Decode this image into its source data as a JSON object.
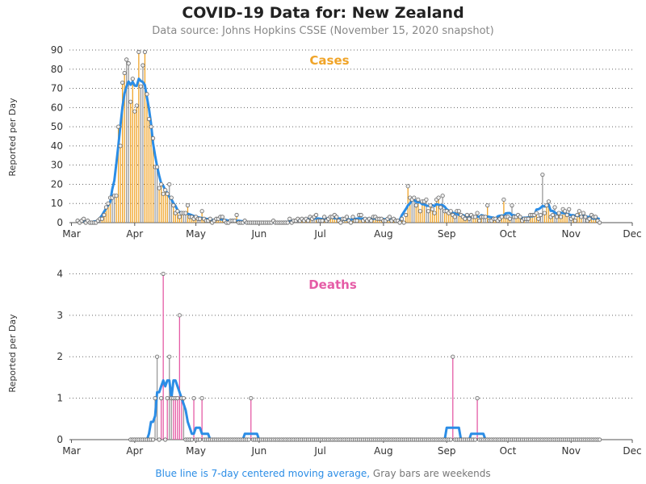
{
  "title": "COVID-19 Data for: New Zealand",
  "subtitle": "Data source: Johns Hopkins CSSE (November 15, 2020 snapshot)",
  "footer": {
    "blue_part": "Blue line is 7-day centered moving average,",
    "gray_part": " Gray bars are weekends"
  },
  "colors": {
    "cases": "#f0a428",
    "deaths": "#e55ca6",
    "average": "#2b8de6",
    "weekend": "#9a9a9a",
    "point_fill": "#eeeeee",
    "grid": "#666666"
  },
  "chart_data": [
    {
      "type": "bar",
      "title": "Cases",
      "ylabel": "Reported per Day",
      "ylim": [
        0,
        90
      ],
      "yticks": [
        0,
        10,
        20,
        30,
        40,
        50,
        60,
        70,
        80,
        90
      ],
      "xticks": [
        "Mar",
        "Apr",
        "May",
        "Jun",
        "Jul",
        "Aug",
        "Sep",
        "Oct",
        "Nov",
        "Dec"
      ],
      "x_start": "2020-02-29",
      "x_end": "2020-12-01",
      "grid": "horizontal dotted",
      "series": [
        {
          "values_by_date": [
            [
              "2020-03-04",
              1
            ],
            [
              "2020-03-06",
              1
            ],
            [
              "2020-03-07",
              2
            ],
            [
              "2020-03-09",
              1
            ],
            [
              "2020-03-14",
              1
            ],
            [
              "2020-03-15",
              2
            ],
            [
              "2020-03-16",
              2
            ],
            [
              "2020-03-17",
              4
            ],
            [
              "2020-03-18",
              8
            ],
            [
              "2020-03-19",
              10
            ],
            [
              "2020-03-20",
              13
            ],
            [
              "2020-03-21",
              13
            ],
            [
              "2020-03-22",
              14
            ],
            [
              "2020-03-23",
              14
            ],
            [
              "2020-03-24",
              50
            ],
            [
              "2020-03-25",
              40
            ],
            [
              "2020-03-26",
              73
            ],
            [
              "2020-03-27",
              78
            ],
            [
              "2020-03-28",
              85
            ],
            [
              "2020-03-29",
              83
            ],
            [
              "2020-03-30",
              63
            ],
            [
              "2020-03-31",
              75
            ],
            [
              "2020-04-01",
              58
            ],
            [
              "2020-04-02",
              61
            ],
            [
              "2020-04-03",
              89
            ],
            [
              "2020-04-04",
              71
            ],
            [
              "2020-04-05",
              82
            ],
            [
              "2020-04-06",
              89
            ],
            [
              "2020-04-07",
              67
            ],
            [
              "2020-04-08",
              54
            ],
            [
              "2020-04-09",
              50
            ],
            [
              "2020-04-10",
              44
            ],
            [
              "2020-04-11",
              29
            ],
            [
              "2020-04-12",
              29
            ],
            [
              "2020-04-13",
              18
            ],
            [
              "2020-04-14",
              20
            ],
            [
              "2020-04-15",
              15
            ],
            [
              "2020-04-16",
              17
            ],
            [
              "2020-04-17",
              15
            ],
            [
              "2020-04-18",
              20
            ],
            [
              "2020-04-19",
              13
            ],
            [
              "2020-04-20",
              9
            ],
            [
              "2020-04-21",
              5
            ],
            [
              "2020-04-22",
              6
            ],
            [
              "2020-04-23",
              3
            ],
            [
              "2020-04-24",
              5
            ],
            [
              "2020-04-25",
              5
            ],
            [
              "2020-04-26",
              5
            ],
            [
              "2020-04-27",
              9
            ],
            [
              "2020-04-28",
              3
            ],
            [
              "2020-04-29",
              3
            ],
            [
              "2020-04-30",
              2
            ],
            [
              "2020-05-01",
              3
            ],
            [
              "2020-05-02",
              2
            ],
            [
              "2020-05-03",
              2
            ],
            [
              "2020-05-04",
              6
            ],
            [
              "2020-05-05",
              2
            ],
            [
              "2020-05-06",
              1
            ],
            [
              "2020-05-07",
              1
            ],
            [
              "2020-05-08",
              2
            ],
            [
              "2020-05-10",
              1
            ],
            [
              "2020-05-11",
              2
            ],
            [
              "2020-05-12",
              2
            ],
            [
              "2020-05-13",
              3
            ],
            [
              "2020-05-14",
              3
            ],
            [
              "2020-05-15",
              1
            ],
            [
              "2020-05-18",
              1
            ],
            [
              "2020-05-19",
              1
            ],
            [
              "2020-05-20",
              1
            ],
            [
              "2020-05-21",
              4
            ],
            [
              "2020-05-25",
              1
            ],
            [
              "2020-06-08",
              1
            ],
            [
              "2020-06-16",
              2
            ],
            [
              "2020-06-18",
              1
            ],
            [
              "2020-06-19",
              1
            ],
            [
              "2020-06-20",
              2
            ],
            [
              "2020-06-21",
              1
            ],
            [
              "2020-06-22",
              2
            ],
            [
              "2020-06-23",
              1
            ],
            [
              "2020-06-24",
              2
            ],
            [
              "2020-06-25",
              1
            ],
            [
              "2020-06-26",
              3
            ],
            [
              "2020-06-27",
              2
            ],
            [
              "2020-06-28",
              3
            ],
            [
              "2020-06-29",
              4
            ],
            [
              "2020-06-30",
              1
            ],
            [
              "2020-07-01",
              1
            ],
            [
              "2020-07-02",
              1
            ],
            [
              "2020-07-03",
              3
            ],
            [
              "2020-07-04",
              1
            ],
            [
              "2020-07-05",
              2
            ],
            [
              "2020-07-06",
              3
            ],
            [
              "2020-07-07",
              3
            ],
            [
              "2020-07-08",
              4
            ],
            [
              "2020-07-09",
              3
            ],
            [
              "2020-07-10",
              1
            ],
            [
              "2020-07-12",
              2
            ],
            [
              "2020-07-13",
              2
            ],
            [
              "2020-07-14",
              3
            ],
            [
              "2020-07-15",
              1
            ],
            [
              "2020-07-17",
              3
            ],
            [
              "2020-07-18",
              1
            ],
            [
              "2020-07-19",
              1
            ],
            [
              "2020-07-20",
              4
            ],
            [
              "2020-07-21",
              4
            ],
            [
              "2020-07-22",
              1
            ],
            [
              "2020-07-23",
              2
            ],
            [
              "2020-07-24",
              1
            ],
            [
              "2020-07-25",
              2
            ],
            [
              "2020-07-26",
              1
            ],
            [
              "2020-07-27",
              3
            ],
            [
              "2020-07-28",
              3
            ],
            [
              "2020-07-29",
              2
            ],
            [
              "2020-07-30",
              2
            ],
            [
              "2020-07-31",
              2
            ],
            [
              "2020-08-01",
              1
            ],
            [
              "2020-08-02",
              1
            ],
            [
              "2020-08-03",
              2
            ],
            [
              "2020-08-04",
              3
            ],
            [
              "2020-08-05",
              1
            ],
            [
              "2020-08-06",
              2
            ],
            [
              "2020-08-07",
              1
            ],
            [
              "2020-08-08",
              1
            ],
            [
              "2020-08-10",
              2
            ],
            [
              "2020-08-12",
              4
            ],
            [
              "2020-08-13",
              19
            ],
            [
              "2020-08-14",
              13
            ],
            [
              "2020-08-15",
              12
            ],
            [
              "2020-08-16",
              13
            ],
            [
              "2020-08-17",
              9
            ],
            [
              "2020-08-18",
              12
            ],
            [
              "2020-08-19",
              6
            ],
            [
              "2020-08-20",
              11
            ],
            [
              "2020-08-21",
              11
            ],
            [
              "2020-08-22",
              12
            ],
            [
              "2020-08-23",
              6
            ],
            [
              "2020-08-24",
              9
            ],
            [
              "2020-08-25",
              7
            ],
            [
              "2020-08-26",
              5
            ],
            [
              "2020-08-27",
              12
            ],
            [
              "2020-08-28",
              13
            ],
            [
              "2020-08-29",
              8
            ],
            [
              "2020-08-30",
              14
            ],
            [
              "2020-08-31",
              6
            ],
            [
              "2020-09-01",
              6
            ],
            [
              "2020-09-02",
              5
            ],
            [
              "2020-09-03",
              6
            ],
            [
              "2020-09-04",
              4
            ],
            [
              "2020-09-05",
              3
            ],
            [
              "2020-09-06",
              6
            ],
            [
              "2020-09-07",
              6
            ],
            [
              "2020-09-08",
              4
            ],
            [
              "2020-09-09",
              3
            ],
            [
              "2020-09-10",
              2
            ],
            [
              "2020-09-11",
              4
            ],
            [
              "2020-09-12",
              2
            ],
            [
              "2020-09-13",
              4
            ],
            [
              "2020-09-14",
              3
            ],
            [
              "2020-09-15",
              3
            ],
            [
              "2020-09-16",
              5
            ],
            [
              "2020-09-17",
              1
            ],
            [
              "2020-09-18",
              3
            ],
            [
              "2020-09-19",
              3
            ],
            [
              "2020-09-20",
              3
            ],
            [
              "2020-09-21",
              9
            ],
            [
              "2020-09-22",
              1
            ],
            [
              "2020-09-23",
              1
            ],
            [
              "2020-09-24",
              2
            ],
            [
              "2020-09-25",
              2
            ],
            [
              "2020-09-26",
              1
            ],
            [
              "2020-09-27",
              2
            ],
            [
              "2020-09-28",
              3
            ],
            [
              "2020-09-29",
              12
            ],
            [
              "2020-09-30",
              3
            ],
            [
              "2020-10-01",
              3
            ],
            [
              "2020-10-02",
              2
            ],
            [
              "2020-10-03",
              9
            ],
            [
              "2020-10-04",
              3
            ],
            [
              "2020-10-05",
              3
            ],
            [
              "2020-10-06",
              4
            ],
            [
              "2020-10-07",
              3
            ],
            [
              "2020-10-08",
              1
            ],
            [
              "2020-10-09",
              2
            ],
            [
              "2020-10-10",
              2
            ],
            [
              "2020-10-11",
              2
            ],
            [
              "2020-10-12",
              4
            ],
            [
              "2020-10-13",
              4
            ],
            [
              "2020-10-14",
              4
            ],
            [
              "2020-10-15",
              5
            ],
            [
              "2020-10-16",
              2
            ],
            [
              "2020-10-17",
              4
            ],
            [
              "2020-10-18",
              25
            ],
            [
              "2020-10-19",
              5
            ],
            [
              "2020-10-20",
              9
            ],
            [
              "2020-10-21",
              11
            ],
            [
              "2020-10-22",
              3
            ],
            [
              "2020-10-23",
              4
            ],
            [
              "2020-10-24",
              8
            ],
            [
              "2020-10-25",
              3
            ],
            [
              "2020-10-26",
              5
            ],
            [
              "2020-10-27",
              3
            ],
            [
              "2020-10-28",
              7
            ],
            [
              "2020-10-29",
              6
            ],
            [
              "2020-10-30",
              4
            ],
            [
              "2020-10-31",
              7
            ],
            [
              "2020-11-01",
              2
            ],
            [
              "2020-11-02",
              3
            ],
            [
              "2020-11-03",
              1
            ],
            [
              "2020-11-04",
              4
            ],
            [
              "2020-11-05",
              6
            ],
            [
              "2020-11-06",
              3
            ],
            [
              "2020-11-07",
              5
            ],
            [
              "2020-11-08",
              3
            ],
            [
              "2020-11-09",
              1
            ],
            [
              "2020-11-10",
              2
            ],
            [
              "2020-11-11",
              4
            ],
            [
              "2020-11-12",
              3
            ],
            [
              "2020-11-13",
              3
            ],
            [
              "2020-11-14",
              1
            ],
            [
              "2020-11-15",
              0
            ]
          ]
        }
      ]
    },
    {
      "type": "bar",
      "title": "Deaths",
      "ylabel": "Reported per Day",
      "ylim": [
        0,
        4.3
      ],
      "yticks": [
        0,
        1,
        2,
        3,
        4
      ],
      "xticks": [
        "Mar",
        "Apr",
        "May",
        "Jun",
        "Jul",
        "Aug",
        "Sep",
        "Oct",
        "Nov",
        "Dec"
      ],
      "x_start": "2020-02-29",
      "x_end": "2020-12-01",
      "grid": "horizontal dotted",
      "first_date": "2020-03-30",
      "last_date": "2020-11-15",
      "series": [
        {
          "values_by_date": [
            [
              "2020-04-11",
              1
            ],
            [
              "2020-04-12",
              2
            ],
            [
              "2020-04-14",
              1
            ],
            [
              "2020-04-15",
              4
            ],
            [
              "2020-04-17",
              1
            ],
            [
              "2020-04-18",
              2
            ],
            [
              "2020-04-19",
              1
            ],
            [
              "2020-04-20",
              1
            ],
            [
              "2020-04-21",
              1
            ],
            [
              "2020-04-22",
              1
            ],
            [
              "2020-04-23",
              3
            ],
            [
              "2020-04-24",
              1
            ],
            [
              "2020-04-25",
              1
            ],
            [
              "2020-04-30",
              1
            ],
            [
              "2020-05-04",
              1
            ],
            [
              "2020-05-28",
              1
            ],
            [
              "2020-09-04",
              2
            ],
            [
              "2020-09-16",
              1
            ]
          ]
        }
      ]
    }
  ]
}
